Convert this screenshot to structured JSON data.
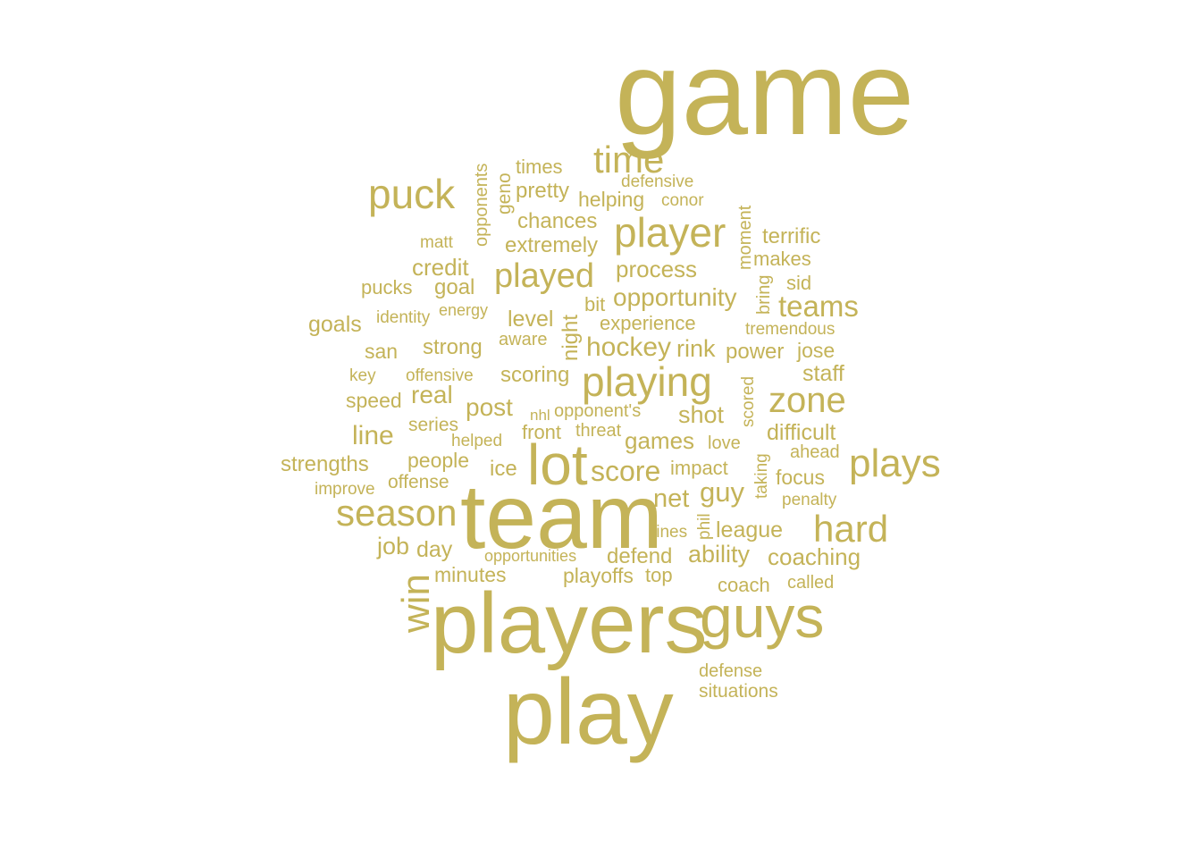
{
  "color": "#c4b358",
  "words": [
    "game",
    "team",
    "players",
    "play",
    "lot",
    "guys",
    "puck",
    "time",
    "player",
    "season",
    "playing",
    "zone",
    "plays",
    "hard",
    "win",
    "played",
    "hockey",
    "teams",
    "score",
    "opportunity",
    "process",
    "credit",
    "goal",
    "strong",
    "level",
    "post",
    "guy",
    "line",
    "real",
    "rink",
    "shot",
    "games",
    "net",
    "ability",
    "coaching",
    "chances",
    "extremely",
    "pretty",
    "times",
    "helping",
    "terrific",
    "makes",
    "sid",
    "power",
    "jose",
    "staff",
    "difficult",
    "focus",
    "league",
    "defend",
    "job",
    "day",
    "minutes",
    "playoffs",
    "top",
    "coach",
    "called",
    "situations",
    "defense",
    "goals",
    "san",
    "scoring",
    "speed",
    "strengths",
    "people",
    "offense",
    "ice",
    "front",
    "threat",
    "impact",
    "love",
    "penalty",
    "ahead",
    "series",
    "helped",
    "improve",
    "experience",
    "tremendous",
    "bit",
    "pucks",
    "matt",
    "identity",
    "energy",
    "aware",
    "offensive",
    "key",
    "opponent's",
    "nhl",
    "defensive",
    "conor",
    "lines",
    "opportunities",
    "geno",
    "opponents",
    "moment",
    "bring",
    "night",
    "scored",
    "taking",
    "phil"
  ]
}
